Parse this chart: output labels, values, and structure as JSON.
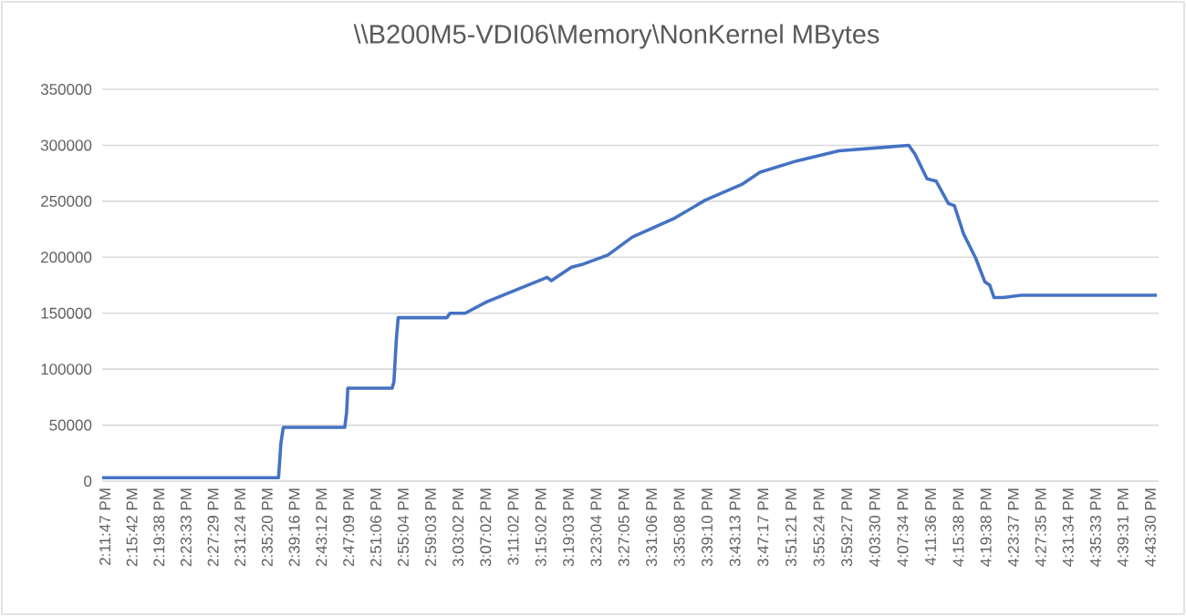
{
  "chart_data": {
    "type": "line",
    "title": "\\\\B200M5-VDI06\\Memory\\NonKernel  MBytes",
    "series": [
      {
        "color": "#4472c4",
        "line_style": "solid",
        "x": [
          14.1898,
          14.6163,
          14.6221,
          14.6278,
          14.7764,
          14.7809,
          14.7839,
          14.8911,
          14.8955,
          14.9013,
          14.9057,
          15.0235,
          15.031,
          15.0676,
          15.1192,
          15.1924,
          15.2661,
          15.2762,
          15.3247,
          15.3543,
          15.413,
          15.4721,
          15.5748,
          15.6485,
          15.7367,
          15.7808,
          15.8691,
          15.9718,
          16.0746,
          16.1408,
          16.1558,
          16.1849,
          16.2069,
          16.2365,
          16.2511,
          16.2731,
          16.3027,
          16.3247,
          16.3366,
          16.3468,
          16.3688,
          16.4129,
          16.7407
        ],
        "values": [
          3000,
          3000,
          34000,
          48000,
          48000,
          61000,
          83000,
          83000,
          89000,
          127000,
          146000,
          146000,
          150000,
          150000,
          160000,
          171000,
          182000,
          179000,
          191000,
          194000,
          202000,
          218000,
          235000,
          251000,
          265000,
          276000,
          286000,
          295000,
          298000,
          300000,
          292000,
          270000,
          268000,
          248000,
          246000,
          221000,
          199000,
          178000,
          175000,
          164000,
          164000,
          166000,
          166000
        ]
      }
    ],
    "xlim": [
      14.1898,
      16.745
    ],
    "xticks": [
      {
        "value": 14.1964,
        "label": "2:11:47 PM"
      },
      {
        "value": 14.2617,
        "label": "2:15:42 PM"
      },
      {
        "value": 14.3272,
        "label": "2:19:38 PM"
      },
      {
        "value": 14.3925,
        "label": "2:23:33 PM"
      },
      {
        "value": 14.4581,
        "label": "2:27:29 PM"
      },
      {
        "value": 14.5233,
        "label": "2:31:24 PM"
      },
      {
        "value": 14.5889,
        "label": "2:35:20 PM"
      },
      {
        "value": 14.6544,
        "label": "2:39:16 PM"
      },
      {
        "value": 14.72,
        "label": "2:43:12 PM"
      },
      {
        "value": 14.7858,
        "label": "2:47:09 PM"
      },
      {
        "value": 14.8517,
        "label": "2:51:06 PM"
      },
      {
        "value": 14.9178,
        "label": "2:55:04 PM"
      },
      {
        "value": 14.9842,
        "label": "2:59:03 PM"
      },
      {
        "value": 15.0506,
        "label": "3:03:02 PM"
      },
      {
        "value": 15.1172,
        "label": "3:07:02 PM"
      },
      {
        "value": 15.1839,
        "label": "3:11:02 PM"
      },
      {
        "value": 15.2506,
        "label": "3:15:02 PM"
      },
      {
        "value": 15.3175,
        "label": "3:19:03 PM"
      },
      {
        "value": 15.3844,
        "label": "3:23:04 PM"
      },
      {
        "value": 15.4514,
        "label": "3:27:05 PM"
      },
      {
        "value": 15.5183,
        "label": "3:31:06 PM"
      },
      {
        "value": 15.5856,
        "label": "3:35:08 PM"
      },
      {
        "value": 15.6528,
        "label": "3:39:10 PM"
      },
      {
        "value": 15.7203,
        "label": "3:43:13 PM"
      },
      {
        "value": 15.7881,
        "label": "3:47:17 PM"
      },
      {
        "value": 15.8558,
        "label": "3:51:21 PM"
      },
      {
        "value": 15.9233,
        "label": "3:55:24 PM"
      },
      {
        "value": 15.9908,
        "label": "3:59:27 PM"
      },
      {
        "value": 16.0583,
        "label": "4:03:30 PM"
      },
      {
        "value": 16.1261,
        "label": "4:07:34 PM"
      },
      {
        "value": 16.1933,
        "label": "4:11:36 PM"
      },
      {
        "value": 16.2606,
        "label": "4:15:38 PM"
      },
      {
        "value": 16.3272,
        "label": "4:19:38 PM"
      },
      {
        "value": 16.3936,
        "label": "4:23:37 PM"
      },
      {
        "value": 16.4597,
        "label": "4:27:35 PM"
      },
      {
        "value": 16.5261,
        "label": "4:31:34 PM"
      },
      {
        "value": 16.5925,
        "label": "4:35:33 PM"
      },
      {
        "value": 16.6586,
        "label": "4:39:31 PM"
      },
      {
        "value": 16.725,
        "label": "4:43:30 PM"
      }
    ],
    "ylim": [
      0,
      350000
    ],
    "yticks": [
      0,
      50000,
      100000,
      150000,
      200000,
      250000,
      300000,
      350000
    ],
    "grid": "y"
  }
}
